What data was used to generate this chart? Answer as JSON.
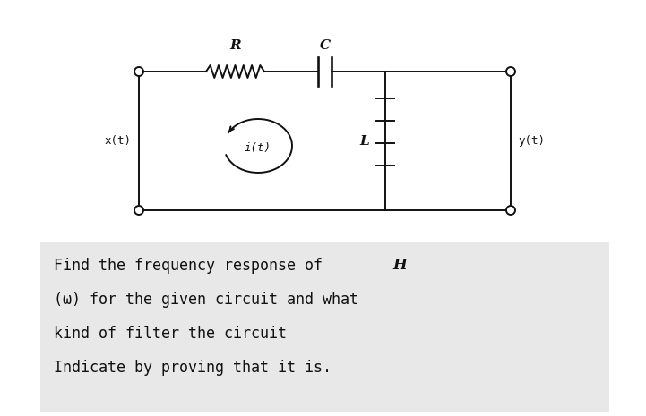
{
  "bg_color": "#ffffff",
  "text_box_color": "#e8e8e8",
  "text_color": "#111111",
  "title_text": "Find the frequency response of ",
  "title_italic": "H",
  "line2": "(ω) for the given circuit and what",
  "line3": "kind of filter the circuit",
  "line4": "Indicate by proving that it is.",
  "label_R": "R",
  "label_C": "C",
  "label_L": "L",
  "label_xt": "x(t)",
  "label_it": "i(t)",
  "label_yt": "y(t)",
  "font_size_circuit": 10,
  "font_size_labels": 9,
  "font_size_text": 12
}
